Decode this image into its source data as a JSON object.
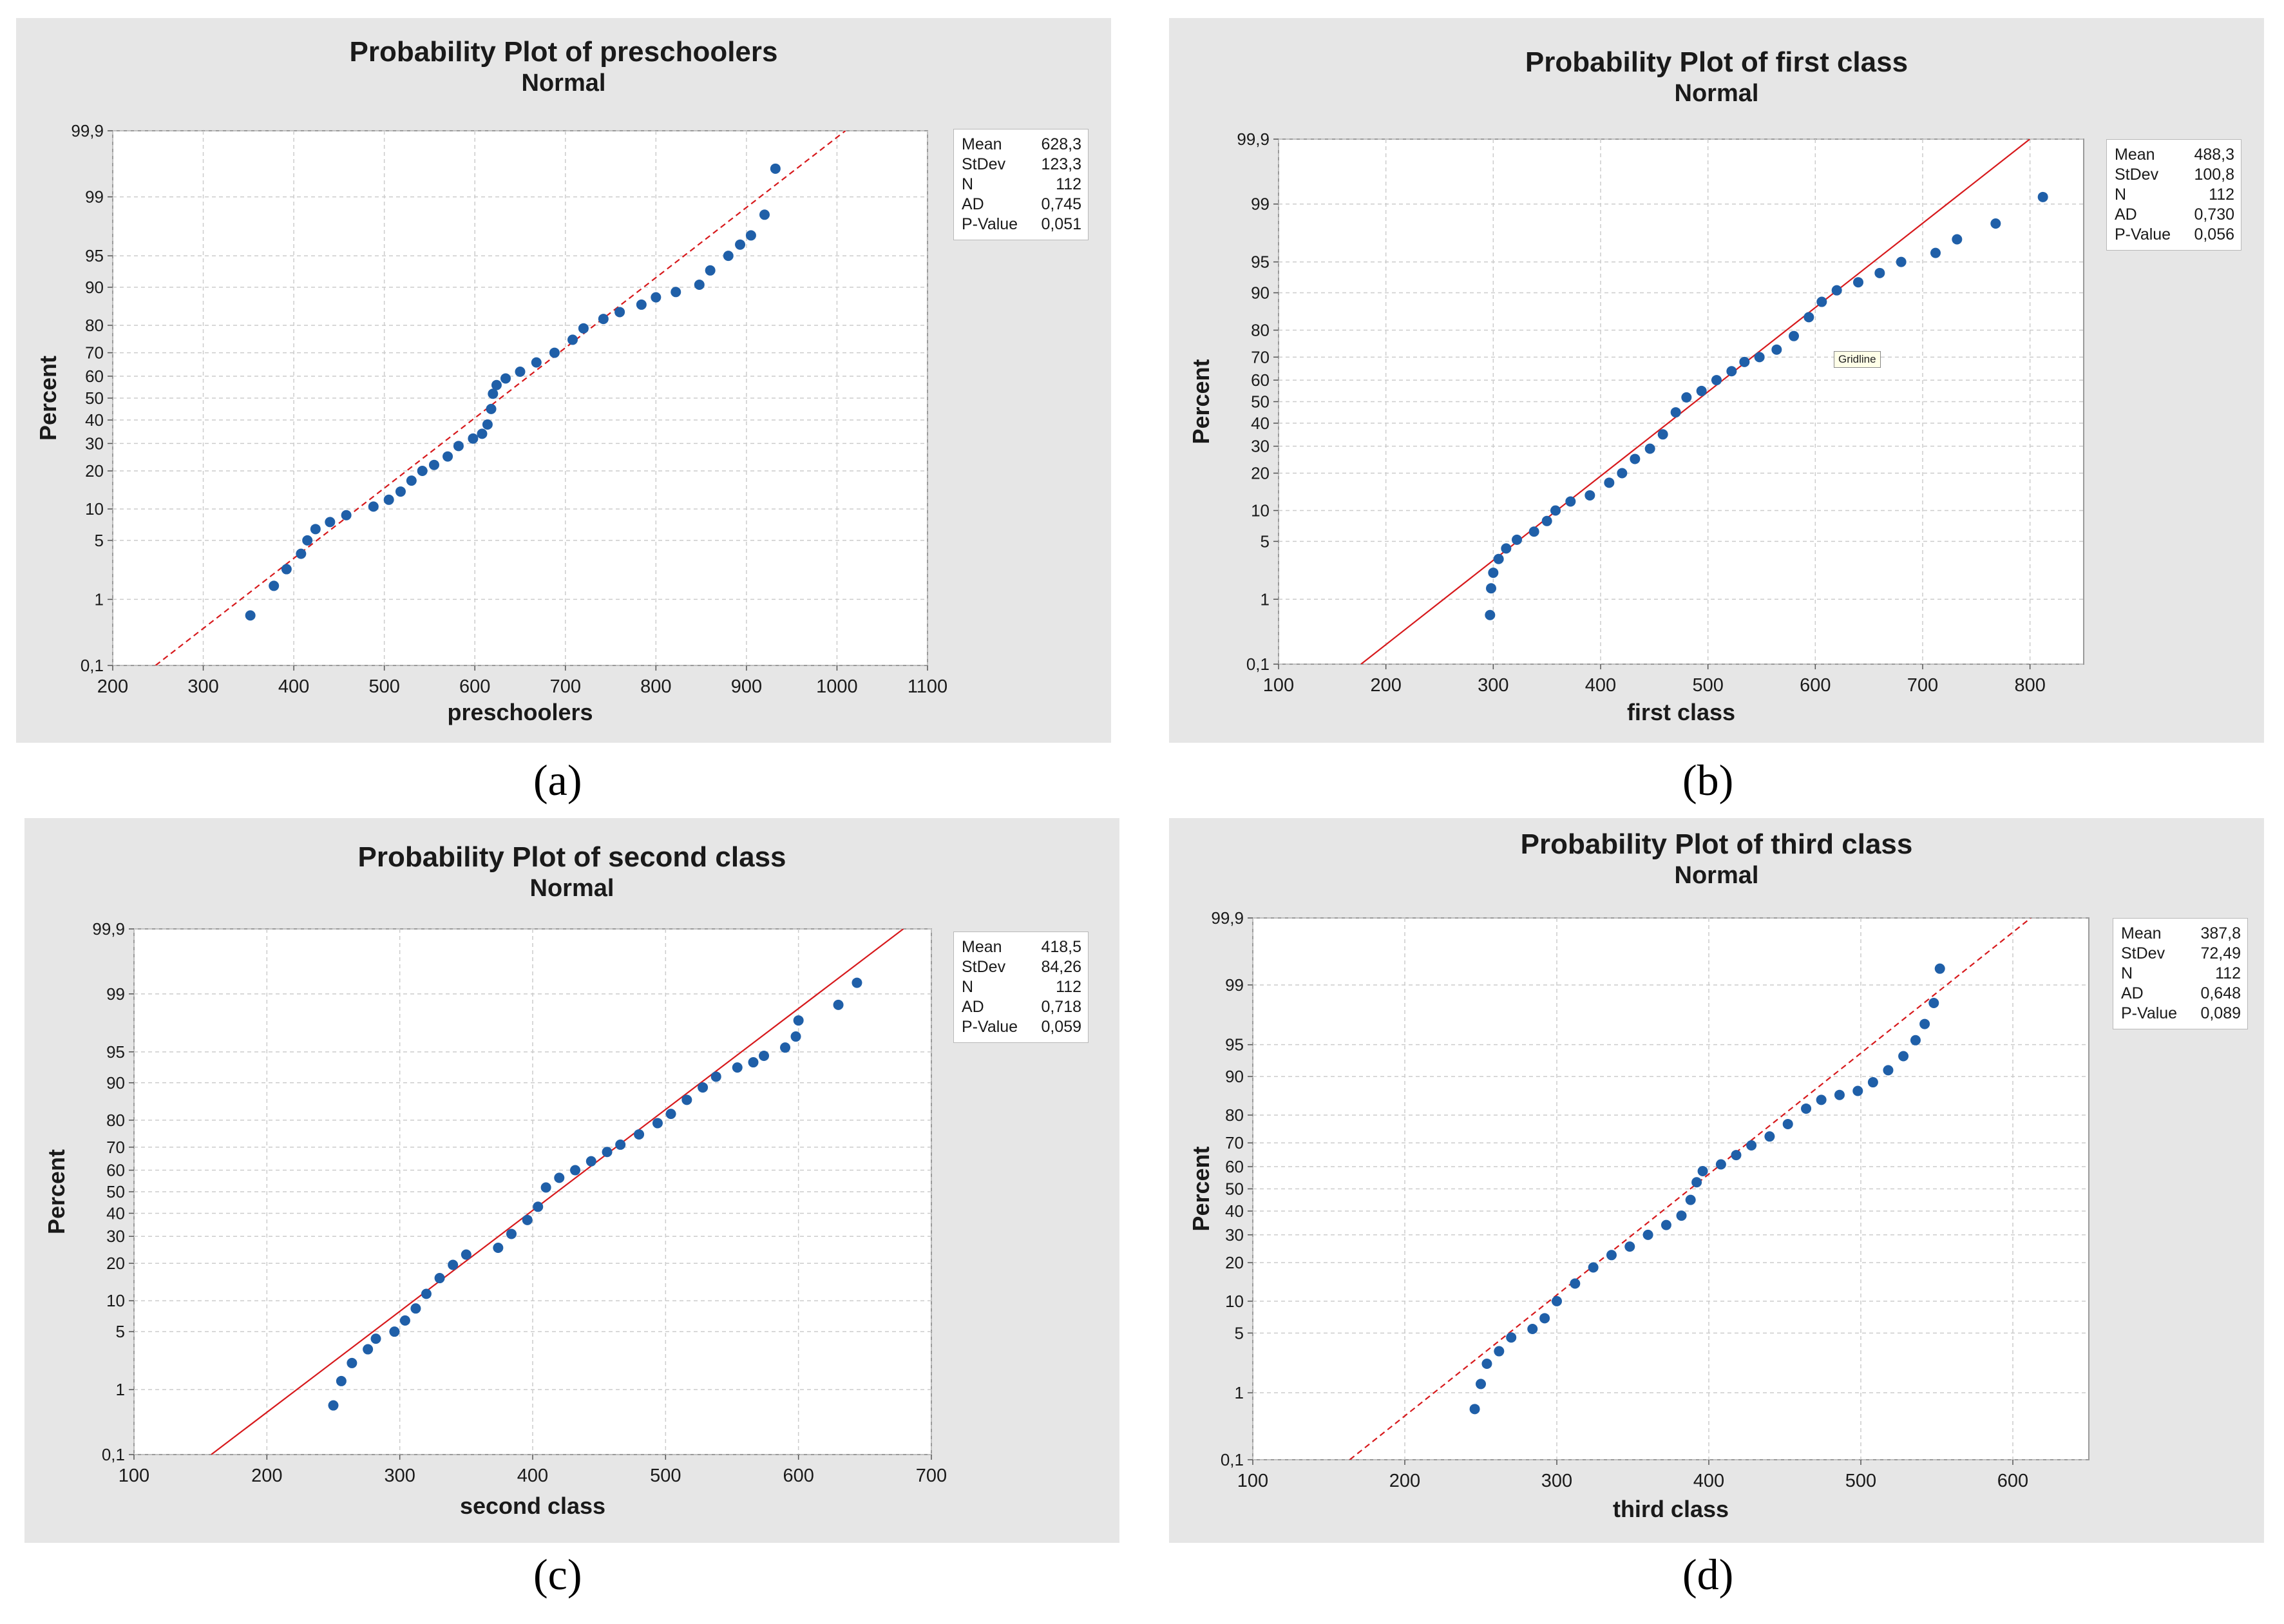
{
  "colors": {
    "panel_bg": "#e6e6e6",
    "plot_bg": "#ffffff",
    "points": "#1f5fa8",
    "fit_line": "#d7191c",
    "grid": "#cccccc"
  },
  "percent_ticks": [
    "0,1",
    "1",
    "5",
    "10",
    "20",
    "30",
    "40",
    "50",
    "60",
    "70",
    "80",
    "90",
    "95",
    "99",
    "99,9"
  ],
  "chart_data": [
    {
      "type": "scatter",
      "title": "Probability Plot of preschoolers",
      "subtitle": "Normal",
      "xlabel": "preschoolers",
      "ylabel": "Percent",
      "caption": "(a)",
      "xlim": [
        200,
        1100
      ],
      "xticks": [
        "200",
        "300",
        "400",
        "500",
        "600",
        "700",
        "800",
        "900",
        "1000",
        "1100"
      ],
      "fit_line_style": "dashed",
      "stats": [
        {
          "label": "Mean",
          "value": "628,3"
        },
        {
          "label": "StDev",
          "value": "123,3"
        },
        {
          "label": "N",
          "value": "112"
        },
        {
          "label": "AD",
          "value": "0,745"
        },
        {
          "label": "P-Value",
          "value": "0,051"
        }
      ],
      "fit": {
        "mean": 628.3,
        "sd": 123.3
      },
      "points": [
        [
          352,
          0.6
        ],
        [
          378,
          1.5
        ],
        [
          392,
          2.4
        ],
        [
          408,
          3.6
        ],
        [
          415,
          5
        ],
        [
          424,
          6.5
        ],
        [
          440,
          7.6
        ],
        [
          458,
          8.8
        ],
        [
          488,
          10.5
        ],
        [
          505,
          12
        ],
        [
          518,
          14
        ],
        [
          530,
          17
        ],
        [
          542,
          20
        ],
        [
          555,
          22
        ],
        [
          570,
          25
        ],
        [
          582,
          29
        ],
        [
          598,
          32
        ],
        [
          608,
          34
        ],
        [
          614,
          38
        ],
        [
          618,
          45
        ],
        [
          620,
          52
        ],
        [
          624,
          56
        ],
        [
          634,
          59
        ],
        [
          650,
          62
        ],
        [
          668,
          66
        ],
        [
          688,
          70
        ],
        [
          708,
          75
        ],
        [
          720,
          79
        ],
        [
          742,
          82
        ],
        [
          760,
          84
        ],
        [
          784,
          86
        ],
        [
          800,
          87.8
        ],
        [
          822,
          89
        ],
        [
          848,
          90.5
        ],
        [
          860,
          93
        ],
        [
          880,
          95
        ],
        [
          893,
          96.2
        ],
        [
          905,
          97
        ],
        [
          920,
          98.3
        ],
        [
          932,
          99.6
        ]
      ]
    },
    {
      "type": "scatter",
      "title": "Probability Plot of first class",
      "subtitle": "Normal",
      "xlabel": "first class",
      "ylabel": "Percent",
      "caption": "(b)",
      "xlim": [
        100,
        850
      ],
      "xticks": [
        "100",
        "200",
        "300",
        "400",
        "500",
        "600",
        "700",
        "800"
      ],
      "fit_line_style": "solid",
      "tooltip": "Gridline",
      "stats": [
        {
          "label": "Mean",
          "value": "488,3"
        },
        {
          "label": "StDev",
          "value": "100,8"
        },
        {
          "label": "N",
          "value": "112"
        },
        {
          "label": "AD",
          "value": "0,730"
        },
        {
          "label": "P-Value",
          "value": "0,056"
        }
      ],
      "fit": {
        "mean": 488.3,
        "sd": 100.8
      },
      "points": [
        [
          297,
          0.6
        ],
        [
          298,
          1.4
        ],
        [
          300,
          2.2
        ],
        [
          305,
          3.2
        ],
        [
          312,
          4.2
        ],
        [
          322,
          5.2
        ],
        [
          338,
          6.3
        ],
        [
          350,
          8
        ],
        [
          358,
          10
        ],
        [
          372,
          12
        ],
        [
          390,
          13.5
        ],
        [
          408,
          17
        ],
        [
          420,
          20
        ],
        [
          432,
          25
        ],
        [
          446,
          29
        ],
        [
          458,
          35
        ],
        [
          470,
          45
        ],
        [
          480,
          52
        ],
        [
          494,
          55
        ],
        [
          508,
          60
        ],
        [
          522,
          64
        ],
        [
          534,
          68
        ],
        [
          548,
          70
        ],
        [
          564,
          73
        ],
        [
          580,
          78
        ],
        [
          594,
          84
        ],
        [
          606,
          88
        ],
        [
          620,
          90.5
        ],
        [
          640,
          92
        ],
        [
          660,
          93.5
        ],
        [
          680,
          95
        ],
        [
          712,
          96
        ],
        [
          732,
          97.2
        ],
        [
          768,
          98.2
        ],
        [
          812,
          99.2
        ]
      ]
    },
    {
      "type": "scatter",
      "title": "Probability Plot of second class",
      "subtitle": "Normal",
      "xlabel": "second class",
      "ylabel": "Percent",
      "caption": "(c)",
      "xlim": [
        100,
        700
      ],
      "xticks": [
        "100",
        "200",
        "300",
        "400",
        "500",
        "600",
        "700"
      ],
      "fit_line_style": "solid",
      "stats": [
        {
          "label": "Mean",
          "value": "418,5"
        },
        {
          "label": "StDev",
          "value": "84,26"
        },
        {
          "label": "N",
          "value": "112"
        },
        {
          "label": "AD",
          "value": "0,718"
        },
        {
          "label": "P-Value",
          "value": "0,059"
        }
      ],
      "fit": {
        "mean": 418.5,
        "sd": 84.26
      },
      "points": [
        [
          250,
          0.6
        ],
        [
          256,
          1.3
        ],
        [
          264,
          2.2
        ],
        [
          276,
          3.2
        ],
        [
          282,
          4.2
        ],
        [
          296,
          5
        ],
        [
          304,
          6.5
        ],
        [
          312,
          8.5
        ],
        [
          320,
          11.5
        ],
        [
          330,
          15.5
        ],
        [
          340,
          19.5
        ],
        [
          350,
          23
        ],
        [
          374,
          25.5
        ],
        [
          384,
          31
        ],
        [
          396,
          37
        ],
        [
          404,
          43
        ],
        [
          410,
          52
        ],
        [
          420,
          56.5
        ],
        [
          432,
          60
        ],
        [
          444,
          64
        ],
        [
          456,
          68
        ],
        [
          466,
          71
        ],
        [
          480,
          75
        ],
        [
          494,
          79
        ],
        [
          504,
          82
        ],
        [
          516,
          86
        ],
        [
          528,
          89
        ],
        [
          538,
          91.2
        ],
        [
          554,
          92.8
        ],
        [
          566,
          93.6
        ],
        [
          574,
          94.5
        ],
        [
          590,
          95.5
        ],
        [
          598,
          96.6
        ],
        [
          600,
          97.8
        ],
        [
          630,
          98.6
        ],
        [
          644,
          99.3
        ]
      ]
    },
    {
      "type": "scatter",
      "title": "Probability Plot of third class",
      "subtitle": "Normal",
      "xlabel": "third class",
      "ylabel": "Percent",
      "caption": "(d)",
      "xlim": [
        100,
        650
      ],
      "xticks": [
        "100",
        "200",
        "300",
        "400",
        "500",
        "600"
      ],
      "fit_line_style": "dashed",
      "stats": [
        {
          "label": "Mean",
          "value": "387,8"
        },
        {
          "label": "StDev",
          "value": "72,49"
        },
        {
          "label": "N",
          "value": "112"
        },
        {
          "label": "AD",
          "value": "0,648"
        },
        {
          "label": "P-Value",
          "value": "0,089"
        }
      ],
      "fit": {
        "mean": 387.8,
        "sd": 72.49
      },
      "points": [
        [
          246,
          0.6
        ],
        [
          250,
          1.3
        ],
        [
          254,
          2.3
        ],
        [
          262,
          3.2
        ],
        [
          270,
          4.5
        ],
        [
          284,
          5.5
        ],
        [
          292,
          7
        ],
        [
          300,
          10
        ],
        [
          312,
          14
        ],
        [
          324,
          18.5
        ],
        [
          336,
          22.5
        ],
        [
          348,
          25.5
        ],
        [
          360,
          30
        ],
        [
          372,
          34
        ],
        [
          382,
          38
        ],
        [
          388,
          45
        ],
        [
          392,
          53
        ],
        [
          396,
          58
        ],
        [
          408,
          61
        ],
        [
          418,
          65
        ],
        [
          428,
          69
        ],
        [
          440,
          72.5
        ],
        [
          452,
          77
        ],
        [
          464,
          82
        ],
        [
          474,
          84.5
        ],
        [
          486,
          85.8
        ],
        [
          498,
          86.8
        ],
        [
          508,
          88.8
        ],
        [
          518,
          91.2
        ],
        [
          528,
          93.5
        ],
        [
          536,
          95.5
        ],
        [
          542,
          97
        ],
        [
          548,
          98.3
        ],
        [
          552,
          99.4
        ]
      ]
    }
  ]
}
